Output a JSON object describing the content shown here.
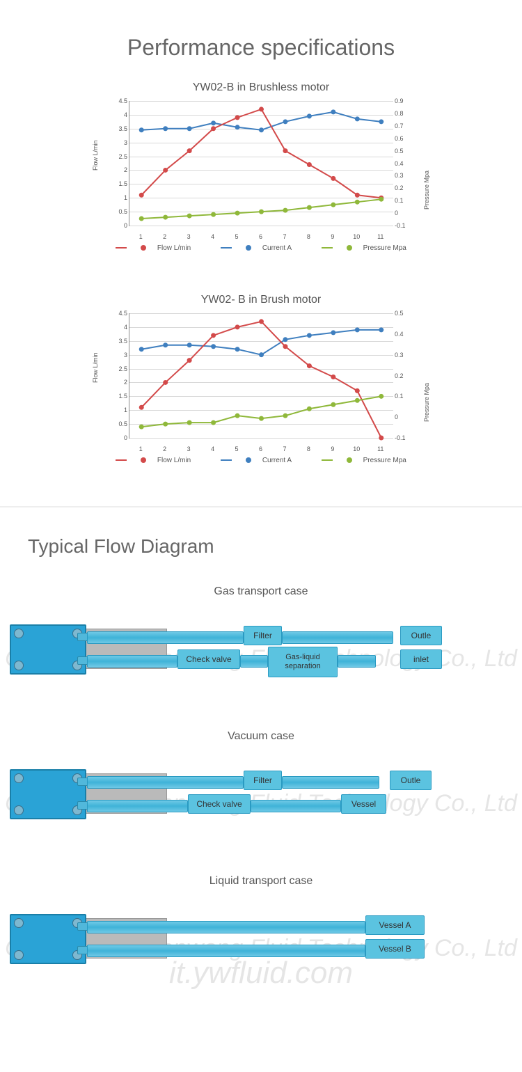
{
  "page_title": "Performance specifications",
  "colors": {
    "flow": "#d34a4a",
    "current": "#3f7fbf",
    "pressure": "#8fb83a",
    "grid": "#d8d8d8",
    "axis": "#888888",
    "box_fill": "#5bc3e0",
    "box_border": "#2a9ac2",
    "pump_fill": "#2aa3d6",
    "motor_fill": "#bababa"
  },
  "legend": {
    "flow": "Flow L/min",
    "current": "Current A",
    "pressure": "Pressure Mpa"
  },
  "chart1": {
    "title": "YW02-B in Brushless motor",
    "x": [
      1,
      2,
      3,
      4,
      5,
      6,
      7,
      8,
      9,
      10,
      11
    ],
    "ylabel_left": "Flow L/min",
    "ylabel_right": "Pressure Mpa",
    "yleft_min": 0,
    "yleft_max": 4.5,
    "yleft_step": 0.5,
    "yright_min": -0.1,
    "yright_max": 0.9,
    "yright_step": 0.1,
    "flow": [
      1.1,
      2.0,
      2.7,
      3.5,
      3.9,
      4.2,
      2.7,
      2.2,
      1.7,
      1.1,
      1.0
    ],
    "current": [
      3.45,
      3.5,
      3.5,
      3.7,
      3.55,
      3.45,
      3.75,
      3.95,
      4.1,
      3.85,
      3.75
    ],
    "pressure": [
      0.25,
      0.3,
      0.35,
      0.4,
      0.45,
      0.5,
      0.55,
      0.65,
      0.75,
      0.85,
      0.95
    ]
  },
  "chart2": {
    "title": "YW02- B in Brush motor",
    "x": [
      1,
      2,
      3,
      4,
      5,
      6,
      7,
      8,
      9,
      10,
      11
    ],
    "ylabel_left": "Flow L/min",
    "ylabel_right": "Pressure Mpa",
    "yleft_min": 0,
    "yleft_max": 4.5,
    "yleft_step": 0.5,
    "yright_min": -0.1,
    "yright_max": 0.5,
    "yright_step": 0.1,
    "flow": [
      1.1,
      2.0,
      2.8,
      3.7,
      4.0,
      4.2,
      3.3,
      2.6,
      2.2,
      1.7,
      0.0
    ],
    "current": [
      3.2,
      3.35,
      3.35,
      3.3,
      3.2,
      3.0,
      3.55,
      3.7,
      3.8,
      3.9,
      3.9
    ],
    "pressure": [
      0.4,
      0.5,
      0.55,
      0.55,
      0.8,
      0.7,
      0.8,
      1.05,
      1.2,
      1.35,
      1.5
    ]
  },
  "diagrams_title": "Typical Flow Diagram",
  "watermark_company": "Changzhou Yuanwang Fluid Technology Co., Ltd",
  "watermark_site": "it.ywfluid.com",
  "diagram1": {
    "title": "Gas transport case",
    "boxes": {
      "filter": "Filter",
      "checkvalve": "Check valve",
      "gasliquid": "Gas-liquid separation",
      "outlet": "Outle",
      "inlet": "inlet"
    }
  },
  "diagram2": {
    "title": "Vacuum case",
    "boxes": {
      "filter": "Filter",
      "checkvalve": "Check valve",
      "vessel": "Vessel",
      "outlet": "Outle"
    }
  },
  "diagram3": {
    "title": "Liquid transport case",
    "boxes": {
      "vesselA": "Vessel A",
      "vesselB": "Vessel B"
    }
  }
}
